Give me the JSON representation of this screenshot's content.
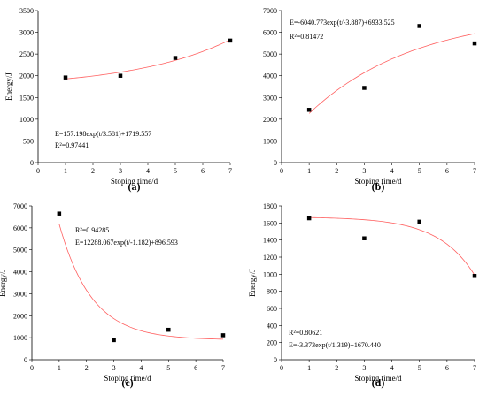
{
  "chart_data": [
    {
      "type": "scatter",
      "panel_label": "(a)",
      "xlabel": "Stoping time/d",
      "ylabel": "Energy/J",
      "xlim": [
        0,
        7
      ],
      "ylim": [
        0,
        3500
      ],
      "xticks": [
        0,
        1,
        2,
        3,
        4,
        5,
        6,
        7
      ],
      "yticks": [
        0,
        500,
        1000,
        1500,
        2000,
        2500,
        3000,
        3500
      ],
      "points": {
        "x": [
          1,
          3,
          5,
          7
        ],
        "y": [
          1960,
          2000,
          2410,
          2810
        ]
      },
      "fit": {
        "form": "exp",
        "A": 157.198,
        "t0": 3.581,
        "y0": 1719.557,
        "x_range": [
          1,
          7
        ]
      },
      "annotations": [
        "E=157.198exp(t/3.581)+1719.557",
        "R²=0.97441"
      ]
    },
    {
      "type": "scatter",
      "panel_label": "(b)",
      "xlabel": "Stoping time/d",
      "ylabel": "",
      "xlim": [
        0,
        7
      ],
      "ylim": [
        0,
        7000
      ],
      "xticks": [
        0,
        1,
        2,
        3,
        4,
        5,
        6,
        7
      ],
      "yticks": [
        0,
        1000,
        2000,
        3000,
        4000,
        5000,
        6000,
        7000
      ],
      "points": {
        "x": [
          1,
          3,
          5,
          7
        ],
        "y": [
          2430,
          3440,
          6290,
          5490
        ]
      },
      "fit": {
        "form": "exp",
        "A": -6040.773,
        "t0": -3.887,
        "y0": 6933.525,
        "x_range": [
          1,
          7
        ]
      },
      "annotations": [
        "E=-6040.773exp(t/-3.887)+6933.525",
        "R²=0.81472"
      ]
    },
    {
      "type": "scatter",
      "panel_label": "(c)",
      "xlabel": "Stoping time/d",
      "ylabel": "Energy/J",
      "xlim": [
        0,
        7
      ],
      "ylim": [
        0,
        7000
      ],
      "xticks": [
        0,
        1,
        2,
        3,
        4,
        5,
        6,
        7
      ],
      "yticks": [
        0,
        1000,
        2000,
        3000,
        4000,
        5000,
        6000,
        7000
      ],
      "points": {
        "x": [
          1,
          3,
          5,
          7
        ],
        "y": [
          6650,
          890,
          1360,
          1110
        ]
      },
      "fit": {
        "form": "exp",
        "A": 12288.067,
        "t0": -1.182,
        "y0": 896.593,
        "x_range": [
          1,
          7
        ]
      },
      "annotations": [
        "R²=0.94285",
        "E=12288.067exp(t/-1.182)+896.593"
      ]
    },
    {
      "type": "scatter",
      "panel_label": "(d)",
      "xlabel": "Stoping time/d",
      "ylabel": "Energy/J",
      "xlim": [
        0,
        7
      ],
      "ylim": [
        0,
        1800
      ],
      "xticks": [
        0,
        1,
        2,
        3,
        4,
        5,
        6,
        7
      ],
      "yticks": [
        0,
        200,
        400,
        600,
        800,
        1000,
        1200,
        1400,
        1600,
        1800
      ],
      "points": {
        "x": [
          1,
          3,
          5,
          7
        ],
        "y": [
          1655,
          1420,
          1615,
          980
        ]
      },
      "fit": {
        "form": "exp",
        "A": -3.373,
        "t0": 1.319,
        "y0": 1670.44,
        "x_range": [
          1,
          7
        ]
      },
      "annotations": [
        "R²=0.80621",
        "E=-3.373exp(t/1.319)+1670.440"
      ]
    }
  ]
}
